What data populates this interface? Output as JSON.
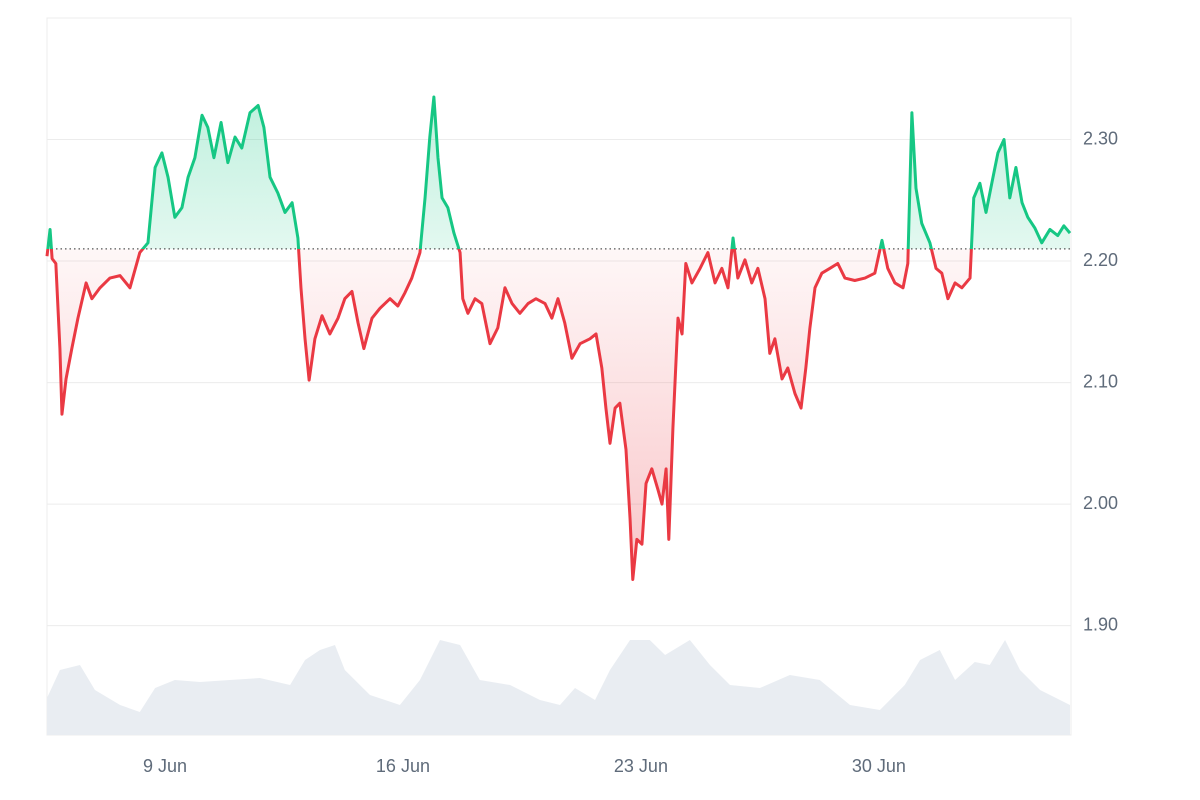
{
  "chart_data": {
    "type": "line",
    "x": [
      5.53,
      5.62,
      5.68,
      5.79,
      5.91,
      5.97,
      6.09,
      6.26,
      6.44,
      6.68,
      6.85,
      7.09,
      7.38,
      7.68,
      7.97,
      8.26,
      8.5,
      8.71,
      8.91,
      9.09,
      9.29,
      9.5,
      9.68,
      9.88,
      10.09,
      10.26,
      10.44,
      10.65,
      10.85,
      11.06,
      11.26,
      11.5,
      11.74,
      11.91,
      12.09,
      12.32,
      12.53,
      12.74,
      12.91,
      13,
      13.12,
      13.24,
      13.41,
      13.62,
      13.85,
      14.09,
      14.29,
      14.5,
      14.68,
      14.85,
      15.09,
      15.32,
      15.62,
      15.85,
      16.06,
      16.26,
      16.5,
      16.65,
      16.79,
      16.91,
      17.03,
      17.15,
      17.32,
      17.5,
      17.68,
      17.76,
      17.91,
      18.12,
      18.32,
      18.56,
      18.79,
      19,
      19.21,
      19.44,
      19.68,
      19.91,
      20.18,
      20.38,
      20.56,
      20.76,
      20.97,
      21.21,
      21.5,
      21.68,
      21.85,
      21.97,
      22.09,
      22.24,
      22.38,
      22.56,
      22.68,
      22.76,
      22.88,
      23.03,
      23.15,
      23.32,
      23.5,
      23.62,
      23.74,
      23.82,
      23.94,
      24.09,
      24.21,
      24.32,
      24.5,
      24.74,
      24.97,
      25.18,
      25.38,
      25.56,
      25.71,
      25.85,
      26.06,
      26.26,
      26.44,
      26.65,
      26.79,
      26.94,
      27.15,
      27.32,
      27.53,
      27.71,
      27.85,
      27.97,
      28.12,
      28.32,
      28.56,
      28.79,
      29,
      29.29,
      29.59,
      29.88,
      30.09,
      30.26,
      30.47,
      30.71,
      30.85,
      30.97,
      31.09,
      31.26,
      31.5,
      31.68,
      31.85,
      32.03,
      32.24,
      32.44,
      32.68,
      32.79,
      32.97,
      33.15,
      33.32,
      33.5,
      33.68,
      33.85,
      34.03,
      34.21,
      34.38,
      34.59,
      34.79,
      35.03,
      35.26,
      35.44,
      35.62
    ],
    "values": [
      2.204,
      2.226,
      2.202,
      2.198,
      2.128,
      2.074,
      2.103,
      2.128,
      2.153,
      2.182,
      2.169,
      2.178,
      2.186,
      2.188,
      2.178,
      2.207,
      2.215,
      2.277,
      2.289,
      2.269,
      2.236,
      2.244,
      2.269,
      2.285,
      2.32,
      2.31,
      2.285,
      2.314,
      2.281,
      2.302,
      2.293,
      2.322,
      2.328,
      2.31,
      2.269,
      2.256,
      2.24,
      2.248,
      2.219,
      2.178,
      2.136,
      2.102,
      2.136,
      2.155,
      2.14,
      2.153,
      2.169,
      2.175,
      2.149,
      2.128,
      2.153,
      2.161,
      2.169,
      2.163,
      2.174,
      2.186,
      2.207,
      2.252,
      2.302,
      2.335,
      2.285,
      2.252,
      2.244,
      2.223,
      2.207,
      2.169,
      2.157,
      2.169,
      2.165,
      2.132,
      2.145,
      2.178,
      2.165,
      2.157,
      2.165,
      2.169,
      2.165,
      2.153,
      2.169,
      2.149,
      2.12,
      2.132,
      2.136,
      2.14,
      2.112,
      2.079,
      2.05,
      2.079,
      2.083,
      2.045,
      1.988,
      1.938,
      1.971,
      1.967,
      2.017,
      2.029,
      2.012,
      2,
      2.029,
      1.971,
      2.062,
      2.153,
      2.14,
      2.198,
      2.182,
      2.194,
      2.207,
      2.182,
      2.194,
      2.178,
      2.219,
      2.186,
      2.201,
      2.182,
      2.194,
      2.169,
      2.124,
      2.136,
      2.103,
      2.112,
      2.091,
      2.079,
      2.112,
      2.145,
      2.178,
      2.19,
      2.194,
      2.198,
      2.186,
      2.184,
      2.186,
      2.19,
      2.217,
      2.194,
      2.182,
      2.178,
      2.198,
      2.322,
      2.26,
      2.231,
      2.215,
      2.194,
      2.19,
      2.169,
      2.182,
      2.178,
      2.186,
      2.252,
      2.264,
      2.24,
      2.264,
      2.289,
      2.3,
      2.252,
      2.277,
      2.248,
      2.236,
      2.227,
      2.215,
      2.226,
      2.221,
      2.229,
      2.223
    ],
    "baseline": 2.21,
    "color_up": "#16c784",
    "color_down": "#ea3943",
    "volume": {
      "color": "#e9edf2",
      "x": [
        5.53,
        5.91,
        6.5,
        6.94,
        7.68,
        8.26,
        8.71,
        9.29,
        10.03,
        10.91,
        11.79,
        12.68,
        13.12,
        13.56,
        14,
        14.29,
        15.03,
        15.91,
        16.5,
        17.09,
        17.68,
        18.26,
        19.15,
        20.03,
        20.62,
        21.06,
        21.65,
        22.09,
        22.68,
        23.26,
        23.71,
        24.44,
        25.03,
        25.62,
        26.5,
        27.38,
        28.26,
        29.15,
        30.03,
        30.76,
        31.21,
        31.79,
        32.24,
        32.82,
        33.26,
        33.71,
        34.15,
        34.74,
        35.62
      ],
      "values": [
        37,
        65,
        70,
        45,
        30,
        23,
        47,
        55,
        53,
        55,
        57,
        50,
        75,
        85,
        90,
        65,
        40,
        30,
        55,
        95,
        90,
        55,
        50,
        35,
        30,
        47,
        35,
        65,
        95,
        95,
        80,
        95,
        70,
        50,
        47,
        60,
        55,
        30,
        25,
        50,
        75,
        85,
        55,
        73,
        70,
        95,
        65,
        45,
        30
      ],
      "vlim": [
        0,
        100
      ]
    },
    "xlim": [
      5.53,
      35.65
    ],
    "xticks": [
      {
        "value": 9,
        "label": "9 Jun"
      },
      {
        "value": 16,
        "label": "16 Jun"
      },
      {
        "value": 23,
        "label": "23 Jun"
      },
      {
        "value": 30,
        "label": "30 Jun"
      }
    ],
    "ylim": [
      1.81,
      2.4
    ],
    "yticks": [
      {
        "value": 1.9,
        "label": "1.90"
      },
      {
        "value": 2.0,
        "label": "2.00"
      },
      {
        "value": 2.1,
        "label": "2.10"
      },
      {
        "value": 2.2,
        "label": "2.20"
      },
      {
        "value": 2.3,
        "label": "2.30"
      }
    ],
    "grid": true
  }
}
